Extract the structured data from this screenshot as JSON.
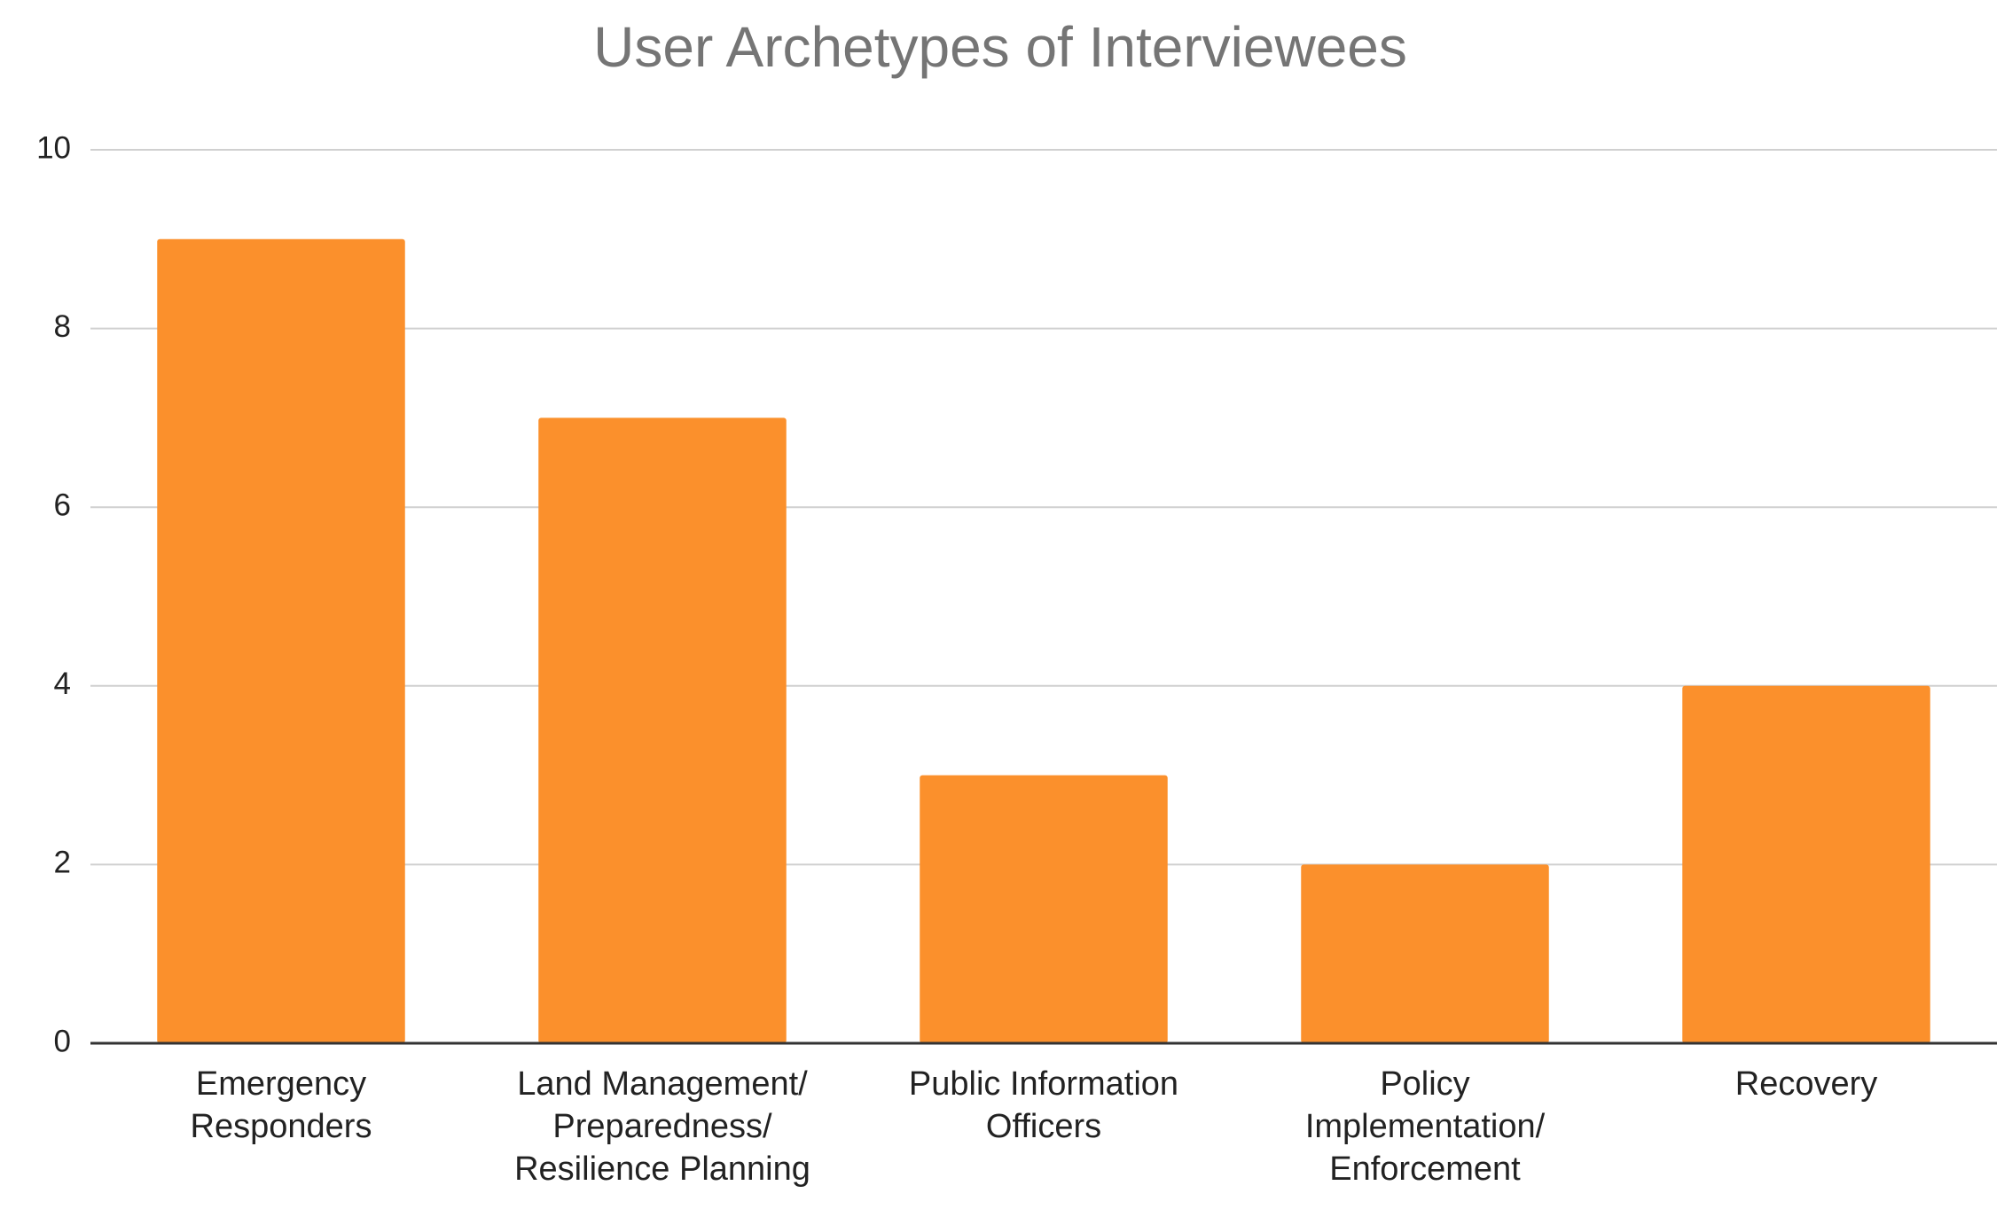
{
  "chart_data": {
    "type": "bar",
    "title": "User Archetypes of Interviewees",
    "categories": [
      "Emergency\nResponders",
      "Land Management/\nPreparedness/\nResilience Planning",
      "Public Information\nOfficers",
      "Policy\nImplementation/\nEnforcement",
      "Recovery"
    ],
    "values": [
      9,
      7,
      3,
      2,
      4
    ],
    "color": "#fb902c",
    "ylim": [
      0,
      10
    ],
    "yticks": [
      0,
      2,
      4,
      6,
      8,
      10
    ],
    "grid": true
  }
}
